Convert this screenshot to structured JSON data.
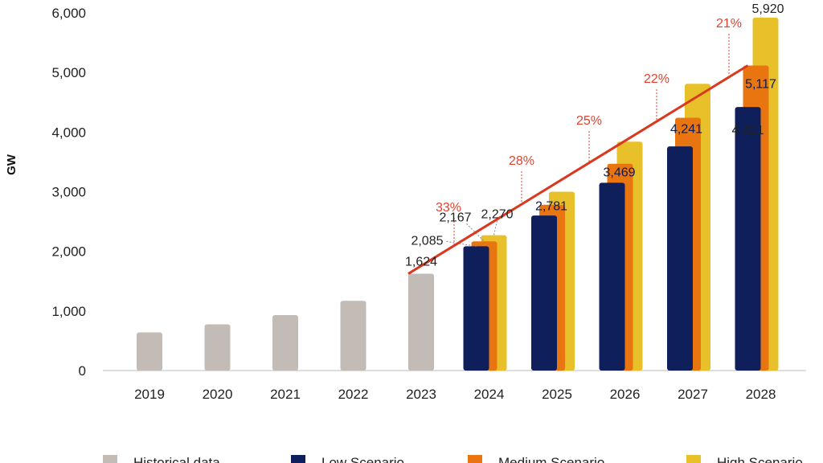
{
  "chart_data": {
    "type": "bar",
    "ylabel": "GW",
    "ylim": [
      0,
      6000
    ],
    "yticks": [
      "0",
      "1,000",
      "2,000",
      "3,000",
      "4,000",
      "5,000",
      "6,000"
    ],
    "ytick_values": [
      0,
      1000,
      2000,
      3000,
      4000,
      5000,
      6000
    ],
    "categories": [
      "2019",
      "2020",
      "2021",
      "2022",
      "2023",
      "2024",
      "2025",
      "2026",
      "2027",
      "2028"
    ],
    "series": [
      {
        "name": "Historical data",
        "color": "#c3bbb6",
        "values": [
          640,
          775,
          930,
          1170,
          1624,
          null,
          null,
          null,
          null,
          null
        ]
      },
      {
        "name": "Low Scenario",
        "color": "#0f1f5c",
        "values": [
          null,
          null,
          null,
          null,
          null,
          2085,
          2600,
          3150,
          3760,
          4421
        ]
      },
      {
        "name": "Medium Scenario",
        "color": "#e8750f",
        "values": [
          null,
          null,
          null,
          null,
          null,
          2167,
          2781,
          3469,
          4241,
          5117
        ]
      },
      {
        "name": "High Scenario",
        "color": "#e8c12a",
        "values": [
          null,
          null,
          null,
          null,
          null,
          2270,
          3000,
          3840,
          4810,
          5920
        ]
      }
    ],
    "data_labels": [
      {
        "text": "1,624",
        "category": "2023",
        "value": 1624
      },
      {
        "text": "2,085",
        "category": "2024",
        "value": 2085
      },
      {
        "text": "2,167",
        "category": "2024",
        "value": 2167
      },
      {
        "text": "2,270",
        "category": "2024",
        "value": 2270
      },
      {
        "text": "2,781",
        "category": "2025",
        "value": 2781
      },
      {
        "text": "3,469",
        "category": "2026",
        "value": 3469
      },
      {
        "text": "4,241",
        "category": "2027",
        "value": 4241
      },
      {
        "text": "4,421",
        "category": "2028",
        "value": 4421
      },
      {
        "text": "5,117",
        "category": "2028",
        "value": 5117
      },
      {
        "text": "5,920",
        "category": "2028",
        "value": 5920
      }
    ],
    "growth_line": {
      "color": "#d9391f",
      "from": {
        "category": "2023",
        "value": 1624
      },
      "to": {
        "category": "2028",
        "value": 5117
      }
    },
    "growth_labels": [
      "33%",
      "28%",
      "25%",
      "22%",
      "21%"
    ],
    "legend": [
      "Historical data",
      "Low Scenario",
      "Medium Scenario",
      "High Scenario"
    ],
    "legend_position": "bottom",
    "grid": false
  }
}
